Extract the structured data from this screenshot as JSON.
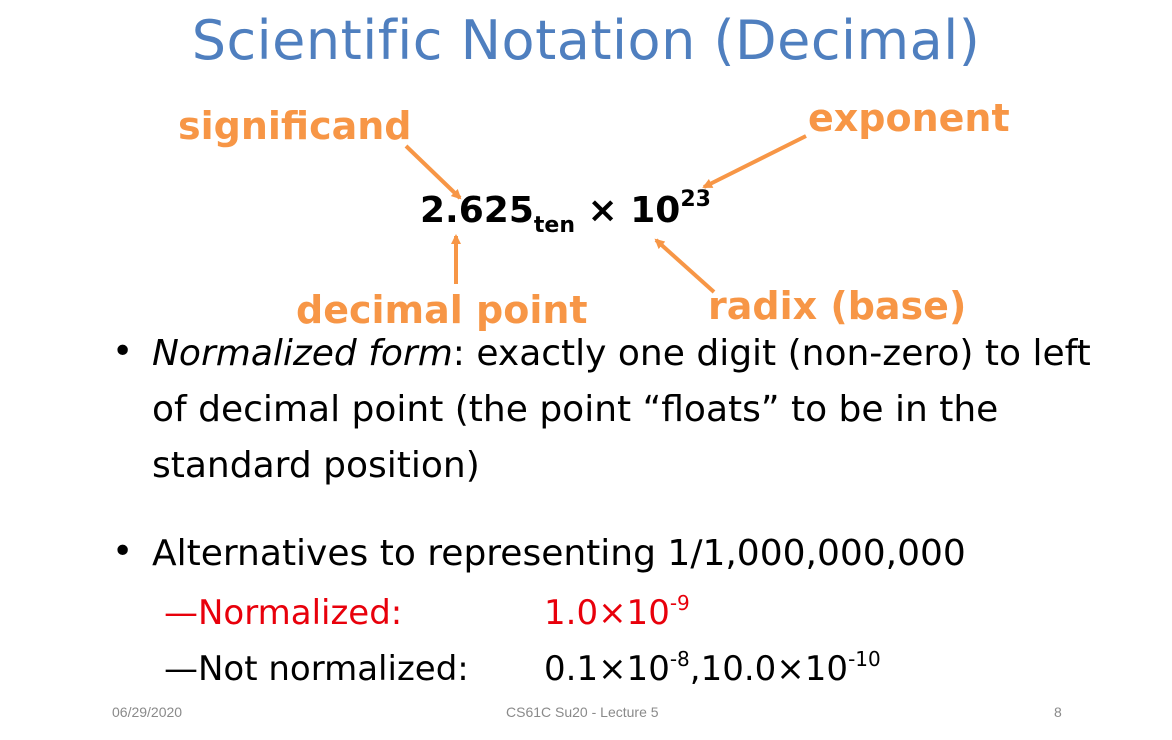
{
  "slide": {
    "title": "Scientific Notation (Decimal)",
    "labels": {
      "significand": "significand",
      "exponent": "exponent",
      "decimal_point": "decimal point",
      "radix": "radix (base)"
    },
    "formula": {
      "significand": "2.625",
      "subscript": "ten",
      "times_base": " × 10",
      "exponent": "23"
    },
    "bullets": [
      {
        "italic_lead": "Normalized form",
        "text": ":  exactly one digit (non-zero) to left of decimal point (the point “floats” to be in the standard position)"
      },
      {
        "text": "Alternatives to representing 1/1,000,000,000"
      }
    ],
    "alternatives": [
      {
        "label": "Normalized:",
        "value_base": "1.0×10",
        "value_exp": "-9",
        "color": "#e8000b"
      },
      {
        "label": "Not normalized:",
        "value_a_base": "0.1×10",
        "value_a_exp": "-8",
        "value_sep": ",",
        "value_b_base": "10.0×10",
        "value_b_exp": "-10",
        "color": "#000000"
      }
    ]
  },
  "footer": {
    "date": "06/29/2020",
    "course": "CS61C Su20 - Lecture 5",
    "page": "8"
  },
  "colors": {
    "title": "#4f7fbf",
    "annotation": "#f79646"
  }
}
